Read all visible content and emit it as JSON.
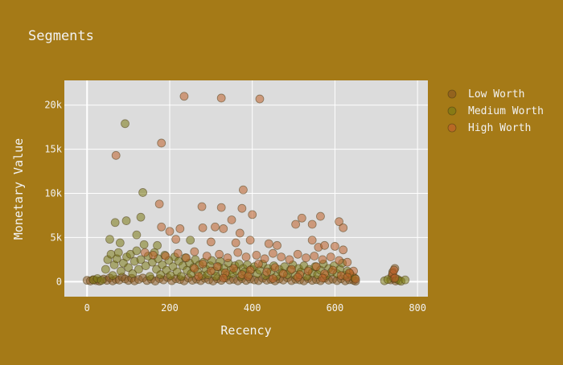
{
  "chart_data": {
    "type": "scatter",
    "title": "Segments",
    "xlabel": "Recency",
    "ylabel": "Monetary Value",
    "xlim": [
      -55,
      825
    ],
    "ylim": [
      -1700,
      22800
    ],
    "xticks": [
      0,
      200,
      400,
      600,
      800
    ],
    "xtick_labels": [
      "0",
      "200",
      "400",
      "600",
      "800"
    ],
    "yticks": [
      0,
      5000,
      10000,
      15000,
      20000
    ],
    "ytick_labels": [
      "0",
      "5k",
      "10k",
      "15k",
      "20k"
    ],
    "grid": true,
    "legend_position": "right",
    "colors": {
      "background": "#a57a17",
      "plot_background": "#dcdcdc",
      "grid": "#ffffff",
      "text": "#f2f2f2"
    },
    "series": [
      {
        "name": "Low Worth",
        "color": "#8b5a22",
        "points": [
          [
            0,
            150
          ],
          [
            8,
            80
          ],
          [
            15,
            220
          ],
          [
            22,
            120
          ],
          [
            30,
            60
          ],
          [
            40,
            300
          ],
          [
            48,
            150
          ],
          [
            55,
            420
          ],
          [
            62,
            90
          ],
          [
            70,
            260
          ],
          [
            78,
            180
          ],
          [
            85,
            520
          ],
          [
            92,
            310
          ],
          [
            100,
            140
          ],
          [
            108,
            380
          ],
          [
            115,
            90
          ],
          [
            125,
            250
          ],
          [
            135,
            410
          ],
          [
            145,
            130
          ],
          [
            155,
            290
          ],
          [
            165,
            70
          ],
          [
            175,
            350
          ],
          [
            185,
            200
          ],
          [
            195,
            460
          ],
          [
            205,
            110
          ],
          [
            215,
            330
          ],
          [
            225,
            240
          ],
          [
            235,
            90
          ],
          [
            245,
            410
          ],
          [
            255,
            160
          ],
          [
            265,
            280
          ],
          [
            275,
            120
          ],
          [
            285,
            370
          ],
          [
            295,
            210
          ],
          [
            305,
            80
          ],
          [
            315,
            330
          ],
          [
            325,
            150
          ],
          [
            335,
            420
          ],
          [
            345,
            190
          ],
          [
            355,
            260
          ],
          [
            365,
            90
          ],
          [
            375,
            340
          ],
          [
            385,
            140
          ],
          [
            395,
            300
          ],
          [
            405,
            200
          ],
          [
            415,
            120
          ],
          [
            425,
            380
          ],
          [
            435,
            170
          ],
          [
            445,
            250
          ],
          [
            455,
            90
          ],
          [
            465,
            310
          ],
          [
            475,
            180
          ],
          [
            485,
            420
          ],
          [
            495,
            120
          ],
          [
            505,
            270
          ],
          [
            515,
            200
          ],
          [
            525,
            90
          ],
          [
            535,
            350
          ],
          [
            545,
            150
          ],
          [
            555,
            230
          ],
          [
            565,
            110
          ],
          [
            575,
            390
          ],
          [
            585,
            170
          ],
          [
            595,
            280
          ],
          [
            605,
            120
          ],
          [
            615,
            330
          ],
          [
            625,
            90
          ],
          [
            635,
            220
          ],
          [
            645,
            150
          ],
          [
            650,
            60
          ],
          [
            735,
            200
          ],
          [
            738,
            650
          ],
          [
            740,
            1100
          ],
          [
            742,
            350
          ],
          [
            745,
            1500
          ],
          [
            747,
            80
          ]
        ]
      },
      {
        "name": "Medium Worth",
        "color": "#7b7a16",
        "points": [
          [
            92,
            17900
          ],
          [
            135,
            10100
          ],
          [
            68,
            6700
          ],
          [
            95,
            6900
          ],
          [
            130,
            7300
          ],
          [
            55,
            4800
          ],
          [
            80,
            4400
          ],
          [
            120,
            5300
          ],
          [
            250,
            4700
          ],
          [
            170,
            4100
          ],
          [
            45,
            1400
          ],
          [
            50,
            2500
          ],
          [
            58,
            3100
          ],
          [
            62,
            700
          ],
          [
            66,
            1900
          ],
          [
            72,
            2600
          ],
          [
            76,
            3300
          ],
          [
            82,
            1200
          ],
          [
            88,
            2100
          ],
          [
            96,
            2800
          ],
          [
            100,
            1600
          ],
          [
            105,
            3100
          ],
          [
            110,
            900
          ],
          [
            115,
            2300
          ],
          [
            120,
            3500
          ],
          [
            125,
            1400
          ],
          [
            130,
            2500
          ],
          [
            138,
            4200
          ],
          [
            142,
            1800
          ],
          [
            148,
            2900
          ],
          [
            152,
            600
          ],
          [
            158,
            2200
          ],
          [
            163,
            3300
          ],
          [
            168,
            1400
          ],
          [
            172,
            2600
          ],
          [
            178,
            800
          ],
          [
            182,
            1900
          ],
          [
            188,
            3000
          ],
          [
            192,
            1300
          ],
          [
            198,
            2400
          ],
          [
            202,
            700
          ],
          [
            208,
            1700
          ],
          [
            212,
            2800
          ],
          [
            218,
            1100
          ],
          [
            222,
            2300
          ],
          [
            228,
            600
          ],
          [
            232,
            1800
          ],
          [
            238,
            2700
          ],
          [
            242,
            1300
          ],
          [
            248,
            2100
          ],
          [
            252,
            900
          ],
          [
            258,
            1600
          ],
          [
            262,
            2500
          ],
          [
            268,
            1100
          ],
          [
            272,
            1900
          ],
          [
            278,
            700
          ],
          [
            282,
            2200
          ],
          [
            288,
            1400
          ],
          [
            292,
            800
          ],
          [
            298,
            1800
          ],
          [
            302,
            2400
          ],
          [
            308,
            1200
          ],
          [
            312,
            600
          ],
          [
            318,
            1700
          ],
          [
            322,
            2300
          ],
          [
            328,
            1000
          ],
          [
            332,
            1500
          ],
          [
            338,
            700
          ],
          [
            342,
            2100
          ],
          [
            348,
            1300
          ],
          [
            352,
            900
          ],
          [
            358,
            1800
          ],
          [
            362,
            1200
          ],
          [
            368,
            2000
          ],
          [
            372,
            600
          ],
          [
            378,
            1500
          ],
          [
            382,
            1100
          ],
          [
            388,
            1900
          ],
          [
            392,
            800
          ],
          [
            398,
            1400
          ],
          [
            405,
            1700
          ],
          [
            412,
            900
          ],
          [
            418,
            1300
          ],
          [
            425,
            2000
          ],
          [
            432,
            700
          ],
          [
            438,
            1500
          ],
          [
            445,
            1100
          ],
          [
            452,
            1800
          ],
          [
            458,
            600
          ],
          [
            465,
            1400
          ],
          [
            472,
            1000
          ],
          [
            478,
            1700
          ],
          [
            485,
            800
          ],
          [
            492,
            1300
          ],
          [
            498,
            1900
          ],
          [
            505,
            700
          ],
          [
            512,
            1500
          ],
          [
            518,
            1100
          ],
          [
            525,
            1800
          ],
          [
            532,
            600
          ],
          [
            538,
            1400
          ],
          [
            545,
            1000
          ],
          [
            552,
            1700
          ],
          [
            558,
            800
          ],
          [
            565,
            1300
          ],
          [
            572,
            2000
          ],
          [
            578,
            700
          ],
          [
            585,
            1500
          ],
          [
            592,
            1100
          ],
          [
            598,
            1800
          ],
          [
            605,
            900
          ],
          [
            612,
            1400
          ],
          [
            618,
            2100
          ],
          [
            624,
            700
          ],
          [
            630,
            1200
          ],
          [
            636,
            900
          ],
          [
            642,
            600
          ],
          [
            648,
            400
          ],
          [
            15,
            200
          ],
          [
            25,
            350
          ],
          [
            35,
            150
          ],
          [
            720,
            100
          ],
          [
            728,
            250
          ],
          [
            750,
            300
          ],
          [
            755,
            150
          ],
          [
            760,
            50
          ],
          [
            770,
            200
          ]
        ]
      },
      {
        "name": "High Worth",
        "color": "#c0622c",
        "points": [
          [
            235,
            21000
          ],
          [
            325,
            20800
          ],
          [
            418,
            20700
          ],
          [
            70,
            14300
          ],
          [
            180,
            15700
          ],
          [
            378,
            10400
          ],
          [
            175,
            8800
          ],
          [
            278,
            8500
          ],
          [
            325,
            8400
          ],
          [
            375,
            8300
          ],
          [
            400,
            7600
          ],
          [
            520,
            7200
          ],
          [
            565,
            7400
          ],
          [
            610,
            6800
          ],
          [
            350,
            7000
          ],
          [
            505,
            6500
          ],
          [
            545,
            6500
          ],
          [
            620,
            6100
          ],
          [
            180,
            6200
          ],
          [
            225,
            6000
          ],
          [
            280,
            6100
          ],
          [
            310,
            6200
          ],
          [
            330,
            6000
          ],
          [
            200,
            5700
          ],
          [
            370,
            5500
          ],
          [
            215,
            4800
          ],
          [
            300,
            4500
          ],
          [
            360,
            4400
          ],
          [
            395,
            4700
          ],
          [
            440,
            4300
          ],
          [
            460,
            4100
          ],
          [
            545,
            4700
          ],
          [
            560,
            3900
          ],
          [
            575,
            4100
          ],
          [
            600,
            4000
          ],
          [
            620,
            3600
          ],
          [
            140,
            3300
          ],
          [
            160,
            3000
          ],
          [
            190,
            2900
          ],
          [
            220,
            3200
          ],
          [
            240,
            2700
          ],
          [
            260,
            3400
          ],
          [
            290,
            2900
          ],
          [
            320,
            3100
          ],
          [
            340,
            2700
          ],
          [
            365,
            3300
          ],
          [
            385,
            2800
          ],
          [
            410,
            3000
          ],
          [
            430,
            2600
          ],
          [
            450,
            3200
          ],
          [
            470,
            2800
          ],
          [
            490,
            2500
          ],
          [
            510,
            3100
          ],
          [
            530,
            2700
          ],
          [
            550,
            2900
          ],
          [
            570,
            2500
          ],
          [
            590,
            2800
          ],
          [
            610,
            2400
          ],
          [
            630,
            2200
          ],
          [
            645,
            1200
          ],
          [
            260,
            1500
          ],
          [
            280,
            2000
          ],
          [
            300,
            1200
          ],
          [
            315,
            1700
          ],
          [
            335,
            1000
          ],
          [
            355,
            1500
          ],
          [
            375,
            800
          ],
          [
            395,
            1300
          ],
          [
            415,
            2000
          ],
          [
            435,
            1100
          ],
          [
            455,
            1600
          ],
          [
            475,
            900
          ],
          [
            495,
            1400
          ],
          [
            515,
            800
          ],
          [
            535,
            1200
          ],
          [
            555,
            1700
          ],
          [
            575,
            900
          ],
          [
            595,
            1300
          ],
          [
            615,
            700
          ],
          [
            635,
            1000
          ],
          [
            650,
            300
          ],
          [
            270,
            600
          ],
          [
            330,
            400
          ],
          [
            390,
            600
          ],
          [
            450,
            350
          ],
          [
            510,
            500
          ],
          [
            570,
            400
          ],
          [
            630,
            500
          ],
          [
            740,
            900
          ],
          [
            743,
            1300
          ],
          [
            745,
            400
          ]
        ]
      }
    ]
  }
}
